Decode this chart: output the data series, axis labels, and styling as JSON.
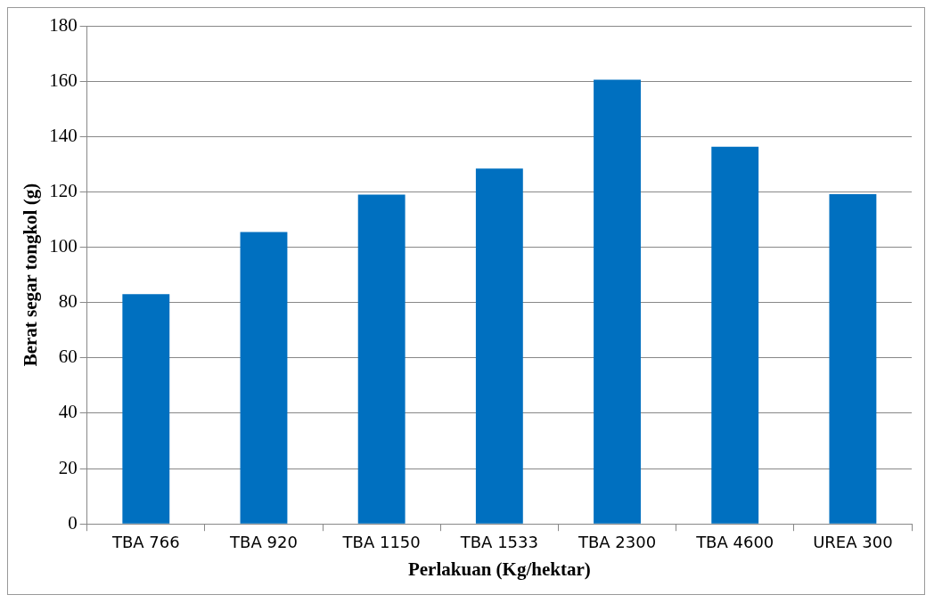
{
  "chart_data": {
    "type": "bar",
    "xlabel": "Perlakuan (Kg/hektar)",
    "ylabel": "Berat segar tongkol (g)",
    "categories": [
      "TBA 766",
      "TBA 920",
      "TBA 1150",
      "TBA 1533",
      "TBA 2300",
      "TBA 4600",
      "UREA 300"
    ],
    "values": [
      83,
      105.5,
      119,
      128.4,
      160.5,
      136.3,
      119.2
    ],
    "color": "#0070c0",
    "ylim": [
      0,
      180
    ],
    "yticks": [
      0,
      20,
      40,
      60,
      80,
      100,
      120,
      140,
      160,
      180
    ],
    "grid": "y",
    "legend": false
  }
}
